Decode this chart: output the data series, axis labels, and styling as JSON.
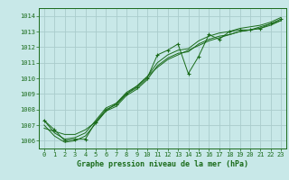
{
  "title": "Graphe pression niveau de la mer (hPa)",
  "bg_color": "#c8e8e8",
  "grid_color": "#aacccc",
  "line_color": "#1a6b1a",
  "text_color": "#1a6b1a",
  "xlim": [
    -0.5,
    23.5
  ],
  "ylim": [
    1005.5,
    1014.5
  ],
  "yticks": [
    1006,
    1007,
    1008,
    1009,
    1010,
    1011,
    1012,
    1013,
    1014
  ],
  "xticks": [
    0,
    1,
    2,
    3,
    4,
    5,
    6,
    7,
    8,
    9,
    10,
    11,
    12,
    13,
    14,
    15,
    16,
    17,
    18,
    19,
    20,
    21,
    22,
    23
  ],
  "pressure_main": [
    1007.3,
    1006.7,
    1006.0,
    1006.1,
    1006.1,
    1007.2,
    1008.0,
    1008.3,
    1009.0,
    1009.4,
    1010.0,
    1011.5,
    1011.8,
    1012.2,
    1010.3,
    1011.4,
    1012.8,
    1012.5,
    1013.0,
    1013.1,
    1013.1,
    1013.2,
    1013.5,
    1013.8
  ],
  "pressure_trend1": [
    1007.3,
    1006.5,
    1006.1,
    1006.2,
    1006.5,
    1007.3,
    1008.1,
    1008.4,
    1009.1,
    1009.5,
    1010.1,
    1011.0,
    1011.5,
    1011.8,
    1011.9,
    1012.4,
    1012.7,
    1012.9,
    1013.0,
    1013.2,
    1013.3,
    1013.4,
    1013.6,
    1013.9
  ],
  "pressure_trend2": [
    1007.0,
    1006.3,
    1005.9,
    1006.0,
    1006.3,
    1007.1,
    1007.9,
    1008.2,
    1008.9,
    1009.3,
    1009.9,
    1010.8,
    1011.3,
    1011.6,
    1011.7,
    1012.2,
    1012.5,
    1012.7,
    1012.8,
    1013.0,
    1013.1,
    1013.2,
    1013.4,
    1013.7
  ],
  "pressure_smooth": [
    1006.8,
    1006.6,
    1006.4,
    1006.4,
    1006.7,
    1007.2,
    1007.9,
    1008.4,
    1009.0,
    1009.5,
    1010.1,
    1010.7,
    1011.2,
    1011.5,
    1011.8,
    1012.1,
    1012.4,
    1012.6,
    1012.8,
    1013.0,
    1013.1,
    1013.3,
    1013.5,
    1013.7
  ]
}
